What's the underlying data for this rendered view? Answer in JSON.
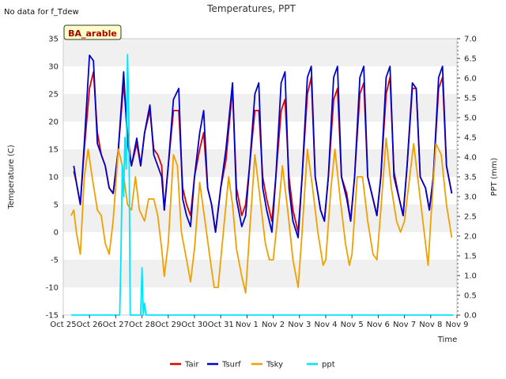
{
  "chart_data": {
    "type": "line",
    "title": "Temperatures, PPT",
    "note": "No data for f_Tdew",
    "site_label": "BA_arable",
    "xlabel": "Time",
    "ylabel": "Temperature (C)",
    "y2label": "PPT (mm)",
    "ylim": [
      -15,
      35
    ],
    "y2lim": [
      0.0,
      7.0
    ],
    "xlim": [
      0,
      15
    ],
    "grid": "horizontal bands",
    "legend_position": "bottom-center",
    "x_ticks": [
      "Oct 25",
      "Oct 26",
      "Oct 27",
      "Oct 28",
      "Oct 29",
      "Oct 30",
      "Oct 31",
      "Nov 1",
      "Nov 2",
      "Nov 3",
      "Nov 4",
      "Nov 5",
      "Nov 6",
      "Nov 7",
      "Nov 8",
      "Nov 9"
    ],
    "y_ticks": [
      "-15",
      "-10",
      "-5",
      "0",
      "5",
      "10",
      "15",
      "20",
      "25",
      "30",
      "35"
    ],
    "y2_ticks": [
      "0.0",
      "0.5",
      "1.0",
      "1.5",
      "2.0",
      "2.5",
      "3.0",
      "3.5",
      "4.0",
      "4.5",
      "5.0",
      "5.5",
      "6.0",
      "6.5",
      "7.0"
    ],
    "series": [
      {
        "name": "Tair",
        "color": "#dd0000",
        "axis": "left",
        "points": [
          [
            0.4,
            11
          ],
          [
            0.5,
            9
          ],
          [
            0.65,
            5
          ],
          [
            0.8,
            15
          ],
          [
            1.0,
            26
          ],
          [
            1.15,
            29
          ],
          [
            1.3,
            18
          ],
          [
            1.45,
            14
          ],
          [
            1.6,
            12
          ],
          [
            1.75,
            8
          ],
          [
            1.9,
            7
          ],
          [
            2.1,
            15
          ],
          [
            2.3,
            27
          ],
          [
            2.45,
            18
          ],
          [
            2.6,
            12
          ],
          [
            2.8,
            16
          ],
          [
            2.95,
            12
          ],
          [
            3.1,
            18
          ],
          [
            3.3,
            22
          ],
          [
            3.45,
            15
          ],
          [
            3.6,
            14
          ],
          [
            3.75,
            12
          ],
          [
            3.85,
            4
          ],
          [
            4.0,
            12
          ],
          [
            4.2,
            22
          ],
          [
            4.4,
            22
          ],
          [
            4.55,
            8
          ],
          [
            4.7,
            5
          ],
          [
            4.85,
            3
          ],
          [
            5.0,
            10
          ],
          [
            5.2,
            15
          ],
          [
            5.35,
            18
          ],
          [
            5.5,
            8
          ],
          [
            5.65,
            5
          ],
          [
            5.8,
            0
          ],
          [
            6.0,
            8
          ],
          [
            6.2,
            13
          ],
          [
            6.45,
            26
          ],
          [
            6.6,
            8
          ],
          [
            6.8,
            3
          ],
          [
            6.95,
            5
          ],
          [
            7.1,
            12
          ],
          [
            7.3,
            22
          ],
          [
            7.45,
            22
          ],
          [
            7.6,
            10
          ],
          [
            7.75,
            6
          ],
          [
            7.95,
            2
          ],
          [
            8.1,
            10
          ],
          [
            8.3,
            22
          ],
          [
            8.45,
            24
          ],
          [
            8.6,
            10
          ],
          [
            8.75,
            4
          ],
          [
            8.95,
            0
          ],
          [
            9.1,
            10
          ],
          [
            9.3,
            25
          ],
          [
            9.45,
            28
          ],
          [
            9.6,
            10
          ],
          [
            9.8,
            4
          ],
          [
            9.95,
            2
          ],
          [
            10.1,
            10
          ],
          [
            10.3,
            24
          ],
          [
            10.45,
            26
          ],
          [
            10.6,
            10
          ],
          [
            10.8,
            7
          ],
          [
            10.95,
            2
          ],
          [
            11.1,
            10
          ],
          [
            11.3,
            25
          ],
          [
            11.45,
            27
          ],
          [
            11.6,
            10
          ],
          [
            11.8,
            6
          ],
          [
            11.95,
            3
          ],
          [
            12.1,
            10
          ],
          [
            12.3,
            25
          ],
          [
            12.45,
            28
          ],
          [
            12.6,
            11
          ],
          [
            12.8,
            6
          ],
          [
            12.95,
            3
          ],
          [
            13.1,
            12
          ],
          [
            13.3,
            26
          ],
          [
            13.45,
            26
          ],
          [
            13.6,
            10
          ],
          [
            13.8,
            8
          ],
          [
            13.95,
            4
          ],
          [
            14.1,
            10
          ],
          [
            14.3,
            26
          ],
          [
            14.45,
            28
          ],
          [
            14.6,
            12
          ],
          [
            14.8,
            7
          ]
        ]
      },
      {
        "name": "Tsurf",
        "color": "#0000cc",
        "axis": "left",
        "points": [
          [
            0.4,
            12
          ],
          [
            0.5,
            9
          ],
          [
            0.65,
            5
          ],
          [
            0.8,
            16
          ],
          [
            1.0,
            32
          ],
          [
            1.15,
            31
          ],
          [
            1.3,
            16
          ],
          [
            1.45,
            14
          ],
          [
            1.6,
            12
          ],
          [
            1.75,
            8
          ],
          [
            1.9,
            7
          ],
          [
            2.1,
            15
          ],
          [
            2.3,
            29
          ],
          [
            2.45,
            16
          ],
          [
            2.6,
            12
          ],
          [
            2.8,
            17
          ],
          [
            2.95,
            12
          ],
          [
            3.1,
            18
          ],
          [
            3.3,
            23
          ],
          [
            3.45,
            14
          ],
          [
            3.6,
            12
          ],
          [
            3.75,
            10
          ],
          [
            3.85,
            4
          ],
          [
            4.0,
            12
          ],
          [
            4.2,
            24
          ],
          [
            4.4,
            26
          ],
          [
            4.55,
            6
          ],
          [
            4.7,
            3
          ],
          [
            4.85,
            1
          ],
          [
            5.0,
            10
          ],
          [
            5.2,
            18
          ],
          [
            5.35,
            22
          ],
          [
            5.5,
            8
          ],
          [
            5.65,
            5
          ],
          [
            5.8,
            0
          ],
          [
            6.0,
            8
          ],
          [
            6.2,
            15
          ],
          [
            6.45,
            27
          ],
          [
            6.6,
            6
          ],
          [
            6.8,
            1
          ],
          [
            6.95,
            3
          ],
          [
            7.1,
            12
          ],
          [
            7.3,
            25
          ],
          [
            7.45,
            27
          ],
          [
            7.6,
            8
          ],
          [
            7.75,
            4
          ],
          [
            7.95,
            0
          ],
          [
            8.1,
            10
          ],
          [
            8.3,
            27
          ],
          [
            8.45,
            29
          ],
          [
            8.6,
            8
          ],
          [
            8.75,
            2
          ],
          [
            8.95,
            -1
          ],
          [
            9.1,
            10
          ],
          [
            9.3,
            28
          ],
          [
            9.45,
            30
          ],
          [
            9.6,
            10
          ],
          [
            9.8,
            4
          ],
          [
            9.95,
            2
          ],
          [
            10.1,
            10
          ],
          [
            10.3,
            28
          ],
          [
            10.45,
            30
          ],
          [
            10.6,
            10
          ],
          [
            10.8,
            6
          ],
          [
            10.95,
            2
          ],
          [
            11.1,
            10
          ],
          [
            11.3,
            28
          ],
          [
            11.45,
            30
          ],
          [
            11.6,
            10
          ],
          [
            11.8,
            6
          ],
          [
            11.95,
            3
          ],
          [
            12.1,
            10
          ],
          [
            12.3,
            28
          ],
          [
            12.45,
            30
          ],
          [
            12.6,
            10
          ],
          [
            12.8,
            6
          ],
          [
            12.95,
            3
          ],
          [
            13.1,
            12
          ],
          [
            13.3,
            27
          ],
          [
            13.45,
            26
          ],
          [
            13.6,
            10
          ],
          [
            13.8,
            8
          ],
          [
            13.95,
            4
          ],
          [
            14.1,
            10
          ],
          [
            14.3,
            28
          ],
          [
            14.45,
            30
          ],
          [
            14.6,
            12
          ],
          [
            14.8,
            7
          ]
        ]
      },
      {
        "name": "Tsky",
        "color": "#f0a000",
        "axis": "left",
        "points": [
          [
            0.3,
            3
          ],
          [
            0.4,
            4
          ],
          [
            0.5,
            0
          ],
          [
            0.65,
            -4
          ],
          [
            0.8,
            10
          ],
          [
            0.95,
            15
          ],
          [
            1.1,
            10
          ],
          [
            1.3,
            4
          ],
          [
            1.45,
            3
          ],
          [
            1.6,
            -2
          ],
          [
            1.75,
            -4
          ],
          [
            1.9,
            2
          ],
          [
            2.1,
            15
          ],
          [
            2.25,
            12
          ],
          [
            2.45,
            5
          ],
          [
            2.6,
            4
          ],
          [
            2.75,
            10
          ],
          [
            2.9,
            4
          ],
          [
            3.1,
            2
          ],
          [
            3.25,
            6
          ],
          [
            3.45,
            6
          ],
          [
            3.6,
            3
          ],
          [
            3.75,
            -3
          ],
          [
            3.85,
            -8
          ],
          [
            4.0,
            -2
          ],
          [
            4.2,
            14
          ],
          [
            4.35,
            12
          ],
          [
            4.5,
            0
          ],
          [
            4.7,
            -5
          ],
          [
            4.85,
            -9
          ],
          [
            5.0,
            -3
          ],
          [
            5.2,
            9
          ],
          [
            5.4,
            2
          ],
          [
            5.6,
            -5
          ],
          [
            5.75,
            -10
          ],
          [
            5.9,
            -10
          ],
          [
            6.1,
            0
          ],
          [
            6.3,
            10
          ],
          [
            6.45,
            5
          ],
          [
            6.6,
            -3
          ],
          [
            6.8,
            -8
          ],
          [
            6.95,
            -11
          ],
          [
            7.1,
            0
          ],
          [
            7.3,
            14
          ],
          [
            7.5,
            6
          ],
          [
            7.7,
            -2
          ],
          [
            7.85,
            -5
          ],
          [
            8.0,
            -5
          ],
          [
            8.2,
            4
          ],
          [
            8.35,
            12
          ],
          [
            8.55,
            4
          ],
          [
            8.75,
            -5
          ],
          [
            8.95,
            -10
          ],
          [
            9.1,
            0
          ],
          [
            9.3,
            15
          ],
          [
            9.5,
            8
          ],
          [
            9.7,
            0
          ],
          [
            9.9,
            -6
          ],
          [
            10.0,
            -5
          ],
          [
            10.2,
            8
          ],
          [
            10.35,
            15
          ],
          [
            10.55,
            6
          ],
          [
            10.75,
            -2
          ],
          [
            10.9,
            -6
          ],
          [
            11.0,
            -4
          ],
          [
            11.2,
            10
          ],
          [
            11.4,
            10
          ],
          [
            11.6,
            2
          ],
          [
            11.8,
            -4
          ],
          [
            11.95,
            -5
          ],
          [
            12.1,
            4
          ],
          [
            12.3,
            17
          ],
          [
            12.5,
            8
          ],
          [
            12.7,
            2
          ],
          [
            12.85,
            0
          ],
          [
            13.0,
            2
          ],
          [
            13.2,
            10
          ],
          [
            13.35,
            16
          ],
          [
            13.55,
            8
          ],
          [
            13.75,
            0
          ],
          [
            13.9,
            -6
          ],
          [
            14.0,
            2
          ],
          [
            14.2,
            16
          ],
          [
            14.4,
            14
          ],
          [
            14.6,
            5
          ],
          [
            14.8,
            -1
          ]
        ]
      },
      {
        "name": "ppt",
        "color": "#00e5ff",
        "axis": "right",
        "points": [
          [
            0.3,
            0
          ],
          [
            2.15,
            0
          ],
          [
            2.2,
            1.5
          ],
          [
            2.25,
            3.8
          ],
          [
            2.3,
            3.0
          ],
          [
            2.35,
            4.5
          ],
          [
            2.4,
            3.7
          ],
          [
            2.45,
            6.6
          ],
          [
            2.5,
            5.0
          ],
          [
            2.55,
            0
          ],
          [
            2.95,
            0
          ],
          [
            3.0,
            1.2
          ],
          [
            3.05,
            0
          ],
          [
            3.1,
            0.3
          ],
          [
            3.15,
            0
          ],
          [
            14.85,
            0
          ]
        ]
      }
    ]
  }
}
